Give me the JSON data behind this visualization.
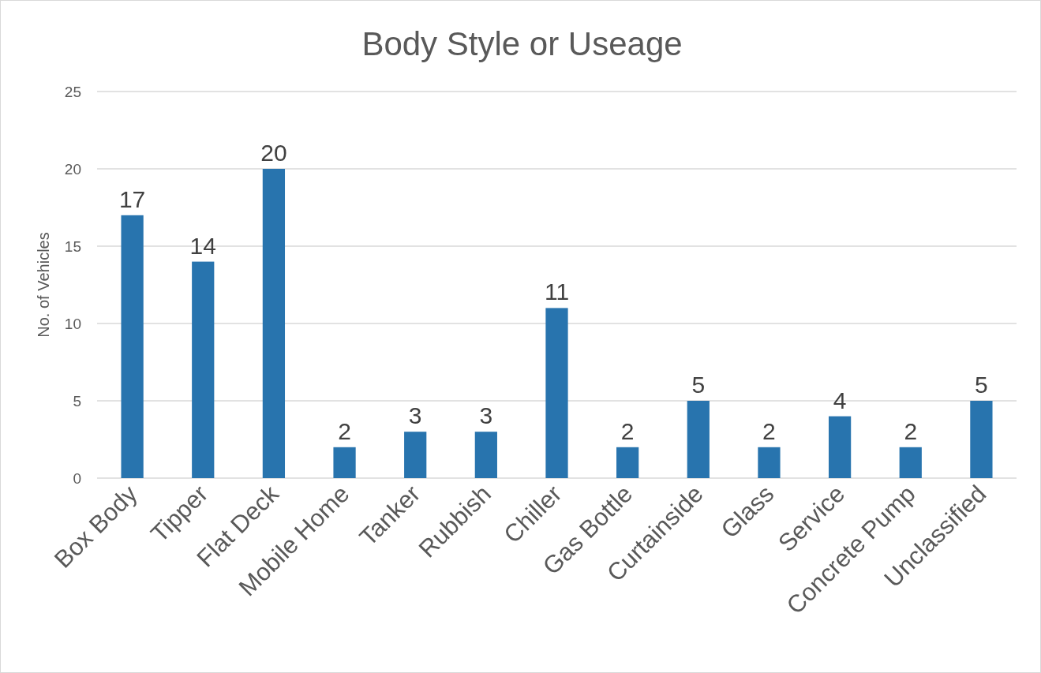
{
  "chart_data": {
    "type": "bar",
    "title": "Body Style or Useage",
    "ylabel": "No. of Vehicles",
    "categories": [
      "Box Body",
      "Tipper",
      "Flat Deck",
      "Mobile Home",
      "Tanker",
      "Rubbish",
      "Chiller",
      "Gas Bottle",
      "Curtainside",
      "Glass",
      "Service",
      "Concrete Pump",
      "Unclassified"
    ],
    "values": [
      17,
      14,
      20,
      2,
      3,
      3,
      11,
      2,
      5,
      2,
      4,
      2,
      5
    ],
    "color": "#2874ae",
    "ylim": [
      0,
      25
    ],
    "yticks": [
      0,
      5,
      10,
      15,
      20,
      25
    ],
    "grid": "y",
    "data_labels": true
  }
}
